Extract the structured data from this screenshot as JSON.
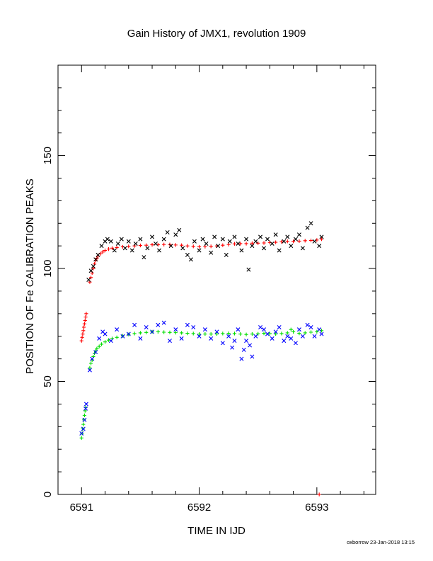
{
  "chart_data": {
    "type": "scatter",
    "title": "Gain History of JMX1, revolution 1909",
    "xlabel": "TIME IN IJD",
    "ylabel": "POSITION OF Fe CALIBRATION PEAKS",
    "xlim": [
      6590.8,
      6593.5
    ],
    "ylim": [
      0,
      190
    ],
    "x_ticks": [
      6591,
      6592,
      6593
    ],
    "y_ticks": [
      0,
      50,
      100,
      150
    ],
    "x_minor_step": 0.2,
    "y_minor_step": 10,
    "grid": false,
    "legend": "none",
    "series": [
      {
        "color": "#ff0000",
        "marker": "plus",
        "points": [
          [
            6591.0,
            68
          ],
          [
            6591.005,
            69.5
          ],
          [
            6591.01,
            71
          ],
          [
            6591.015,
            72.5
          ],
          [
            6591.02,
            74
          ],
          [
            6591.025,
            75.5
          ],
          [
            6591.03,
            77
          ],
          [
            6591.035,
            78.5
          ],
          [
            6591.04,
            80
          ],
          [
            6591.07,
            94
          ],
          [
            6591.08,
            96
          ],
          [
            6591.09,
            98
          ],
          [
            6591.1,
            100
          ],
          [
            6591.11,
            102
          ],
          [
            6591.12,
            103.5
          ],
          [
            6591.13,
            104.5
          ],
          [
            6591.14,
            105.5
          ],
          [
            6591.16,
            106.5
          ],
          [
            6591.18,
            107.3
          ],
          [
            6591.2,
            108
          ],
          [
            6591.23,
            108.6
          ],
          [
            6591.26,
            109
          ],
          [
            6591.3,
            109.3
          ],
          [
            6591.35,
            109.6
          ],
          [
            6591.4,
            109.8
          ],
          [
            6591.45,
            110
          ],
          [
            6591.5,
            110.2
          ],
          [
            6591.55,
            110.3
          ],
          [
            6591.6,
            110.5
          ],
          [
            6591.65,
            110.5
          ],
          [
            6591.7,
            110.6
          ],
          [
            6591.75,
            110.6
          ],
          [
            6591.8,
            110.4
          ],
          [
            6591.85,
            110.3
          ],
          [
            6591.9,
            110
          ],
          [
            6591.95,
            109.8
          ],
          [
            6592.0,
            109.6
          ],
          [
            6592.05,
            109.7
          ],
          [
            6592.1,
            109.8
          ],
          [
            6592.15,
            110
          ],
          [
            6592.2,
            110.3
          ],
          [
            6592.25,
            110.6
          ],
          [
            6592.3,
            110.9
          ],
          [
            6592.35,
            111
          ],
          [
            6592.4,
            111
          ],
          [
            6592.45,
            111.2
          ],
          [
            6592.5,
            111.2
          ],
          [
            6592.55,
            111.3
          ],
          [
            6592.6,
            111.5
          ],
          [
            6592.65,
            111.6
          ],
          [
            6592.7,
            111.8
          ],
          [
            6592.75,
            112
          ],
          [
            6592.8,
            112
          ],
          [
            6592.85,
            112.1
          ],
          [
            6592.9,
            112.3
          ],
          [
            6592.95,
            112.4
          ],
          [
            6593.0,
            112.6
          ],
          [
            6593.04,
            113
          ],
          [
            6593.02,
            0
          ]
        ]
      },
      {
        "color": "#000000",
        "marker": "x",
        "points": [
          [
            6591.06,
            95
          ],
          [
            6591.08,
            99
          ],
          [
            6591.1,
            101
          ],
          [
            6591.12,
            104
          ],
          [
            6591.14,
            106
          ],
          [
            6591.17,
            110
          ],
          [
            6591.2,
            112
          ],
          [
            6591.22,
            113
          ],
          [
            6591.25,
            112
          ],
          [
            6591.28,
            108
          ],
          [
            6591.31,
            111
          ],
          [
            6591.34,
            113
          ],
          [
            6591.37,
            109
          ],
          [
            6591.4,
            112
          ],
          [
            6591.43,
            108
          ],
          [
            6591.46,
            111
          ],
          [
            6591.5,
            113
          ],
          [
            6591.53,
            105
          ],
          [
            6591.56,
            109
          ],
          [
            6591.6,
            114
          ],
          [
            6591.63,
            111
          ],
          [
            6591.66,
            108
          ],
          [
            6591.7,
            113
          ],
          [
            6591.73,
            116
          ],
          [
            6591.76,
            110
          ],
          [
            6591.8,
            115
          ],
          [
            6591.83,
            117
          ],
          [
            6591.86,
            109
          ],
          [
            6591.9,
            106
          ],
          [
            6591.93,
            104
          ],
          [
            6591.96,
            112
          ],
          [
            6592.0,
            108
          ],
          [
            6592.03,
            113
          ],
          [
            6592.06,
            111
          ],
          [
            6592.1,
            107
          ],
          [
            6592.13,
            114
          ],
          [
            6592.16,
            110
          ],
          [
            6592.2,
            113
          ],
          [
            6592.23,
            106
          ],
          [
            6592.26,
            112
          ],
          [
            6592.3,
            114
          ],
          [
            6592.33,
            111
          ],
          [
            6592.36,
            108
          ],
          [
            6592.4,
            113
          ],
          [
            6592.42,
            99.5
          ],
          [
            6592.45,
            110
          ],
          [
            6592.48,
            112
          ],
          [
            6592.52,
            114
          ],
          [
            6592.55,
            109
          ],
          [
            6592.58,
            113
          ],
          [
            6592.62,
            111
          ],
          [
            6592.65,
            115
          ],
          [
            6592.68,
            108
          ],
          [
            6592.72,
            112
          ],
          [
            6592.75,
            114
          ],
          [
            6592.78,
            110
          ],
          [
            6592.82,
            113
          ],
          [
            6592.85,
            115
          ],
          [
            6592.88,
            109
          ],
          [
            6592.92,
            118
          ],
          [
            6592.95,
            120
          ],
          [
            6592.98,
            112
          ],
          [
            6593.02,
            110
          ],
          [
            6593.04,
            114
          ]
        ]
      },
      {
        "color": "#00dd00",
        "marker": "plus",
        "points": [
          [
            6591.0,
            25
          ],
          [
            6591.005,
            27
          ],
          [
            6591.01,
            29
          ],
          [
            6591.015,
            31
          ],
          [
            6591.02,
            33
          ],
          [
            6591.025,
            35
          ],
          [
            6591.03,
            37
          ],
          [
            6591.035,
            38.5
          ],
          [
            6591.07,
            56
          ],
          [
            6591.08,
            58
          ],
          [
            6591.09,
            59.5
          ],
          [
            6591.1,
            61
          ],
          [
            6591.11,
            62.5
          ],
          [
            6591.12,
            63.5
          ],
          [
            6591.13,
            64.5
          ],
          [
            6591.15,
            65.5
          ],
          [
            6591.17,
            66.5
          ],
          [
            6591.2,
            67.5
          ],
          [
            6591.23,
            68.3
          ],
          [
            6591.26,
            69
          ],
          [
            6591.3,
            69.5
          ],
          [
            6591.35,
            70.2
          ],
          [
            6591.4,
            70.8
          ],
          [
            6591.45,
            71.2
          ],
          [
            6591.5,
            71.5
          ],
          [
            6591.55,
            71.7
          ],
          [
            6591.6,
            72
          ],
          [
            6591.65,
            72
          ],
          [
            6591.7,
            71.8
          ],
          [
            6591.75,
            71.7
          ],
          [
            6591.8,
            71.6
          ],
          [
            6591.85,
            71.5
          ],
          [
            6591.9,
            71.3
          ],
          [
            6591.95,
            71.2
          ],
          [
            6592.0,
            71
          ],
          [
            6592.05,
            71
          ],
          [
            6592.1,
            71
          ],
          [
            6592.15,
            71
          ],
          [
            6592.2,
            71.2
          ],
          [
            6592.25,
            71.3
          ],
          [
            6592.3,
            71.2
          ],
          [
            6592.35,
            71
          ],
          [
            6592.4,
            70.8
          ],
          [
            6592.45,
            71
          ],
          [
            6592.5,
            71.1
          ],
          [
            6592.55,
            71.3
          ],
          [
            6592.6,
            71.2
          ],
          [
            6592.65,
            71
          ],
          [
            6592.7,
            71.2
          ],
          [
            6592.75,
            71.5
          ],
          [
            6592.78,
            73
          ],
          [
            6592.8,
            72
          ],
          [
            6592.85,
            71.3
          ],
          [
            6592.9,
            71.5
          ],
          [
            6592.95,
            71.8
          ],
          [
            6593.0,
            72
          ],
          [
            6593.04,
            72.5
          ]
        ]
      },
      {
        "color": "#0000ff",
        "marker": "x",
        "points": [
          [
            6591.0,
            27
          ],
          [
            6591.015,
            29
          ],
          [
            6591.025,
            33
          ],
          [
            6591.035,
            38
          ],
          [
            6591.04,
            40
          ],
          [
            6591.07,
            55
          ],
          [
            6591.09,
            60
          ],
          [
            6591.12,
            63
          ],
          [
            6591.15,
            69
          ],
          [
            6591.18,
            72
          ],
          [
            6591.2,
            71
          ],
          [
            6591.25,
            68
          ],
          [
            6591.3,
            73
          ],
          [
            6591.35,
            70
          ],
          [
            6591.4,
            71
          ],
          [
            6591.45,
            75
          ],
          [
            6591.5,
            69
          ],
          [
            6591.55,
            74
          ],
          [
            6591.6,
            72
          ],
          [
            6591.65,
            75
          ],
          [
            6591.7,
            76
          ],
          [
            6591.75,
            68
          ],
          [
            6591.8,
            73
          ],
          [
            6591.85,
            69
          ],
          [
            6591.9,
            75
          ],
          [
            6591.95,
            74
          ],
          [
            6592.0,
            70
          ],
          [
            6592.05,
            73
          ],
          [
            6592.1,
            69
          ],
          [
            6592.15,
            72
          ],
          [
            6592.2,
            67
          ],
          [
            6592.25,
            70
          ],
          [
            6592.28,
            65
          ],
          [
            6592.3,
            68
          ],
          [
            6592.33,
            73
          ],
          [
            6592.36,
            60
          ],
          [
            6592.38,
            64
          ],
          [
            6592.4,
            68
          ],
          [
            6592.43,
            66
          ],
          [
            6592.45,
            61
          ],
          [
            6592.48,
            70
          ],
          [
            6592.52,
            74
          ],
          [
            6592.55,
            73
          ],
          [
            6592.58,
            71
          ],
          [
            6592.62,
            69
          ],
          [
            6592.65,
            72
          ],
          [
            6592.68,
            74
          ],
          [
            6592.72,
            68
          ],
          [
            6592.75,
            70
          ],
          [
            6592.78,
            69
          ],
          [
            6592.82,
            67
          ],
          [
            6592.85,
            73
          ],
          [
            6592.88,
            70
          ],
          [
            6592.92,
            75
          ],
          [
            6592.95,
            74
          ],
          [
            6592.98,
            70
          ],
          [
            6593.02,
            73
          ],
          [
            6593.04,
            71
          ]
        ]
      }
    ]
  },
  "footer": "oxborrow 23-Jan-2018 13:15"
}
